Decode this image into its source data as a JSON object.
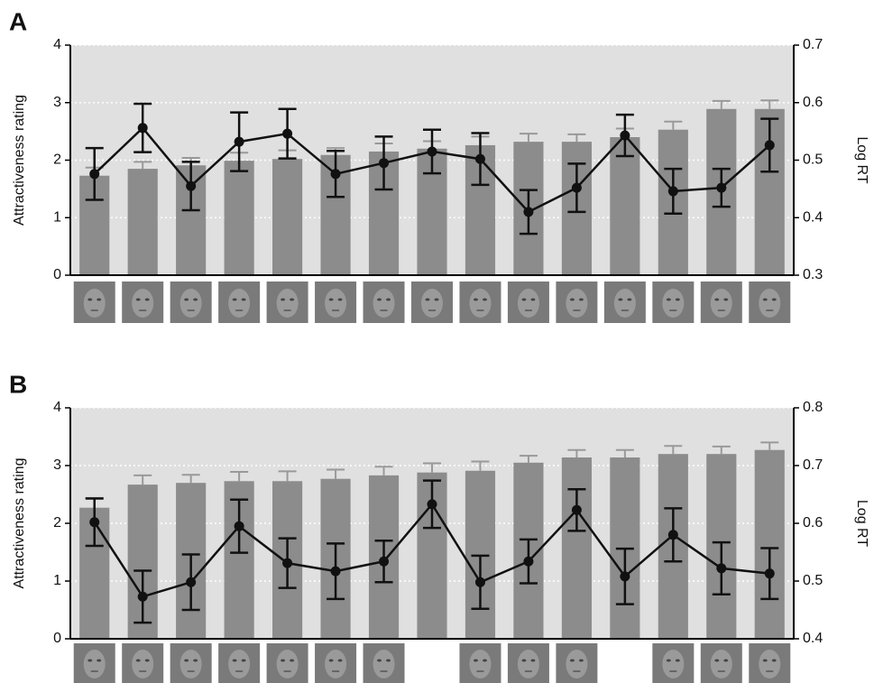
{
  "chart_data": [
    {
      "type": "combo",
      "panel": "A",
      "ylabel": "Attractiveness rating",
      "y2label": "Log RT",
      "ylim": [
        0,
        4
      ],
      "yticks": [
        0,
        1,
        2,
        3,
        4
      ],
      "y2lim": [
        0.3,
        0.7
      ],
      "y2ticks": [
        0.3,
        0.4,
        0.5,
        0.6,
        0.7
      ],
      "grid": true,
      "series": [
        {
          "kind": "bar",
          "color": "#8c8c8c",
          "values": [
            1.73,
            1.85,
            1.91,
            1.99,
            2.02,
            2.09,
            2.15,
            2.2,
            2.26,
            2.32,
            2.32,
            2.4,
            2.53,
            2.89,
            2.89
          ],
          "errors": [
            0.14,
            0.12,
            0.13,
            0.14,
            0.15,
            0.12,
            0.14,
            0.13,
            0.15,
            0.14,
            0.13,
            0.15,
            0.14,
            0.14,
            0.15
          ]
        },
        {
          "kind": "line",
          "axis": "y2",
          "color": "#111111",
          "values": [
            0.476,
            0.556,
            0.455,
            0.532,
            0.546,
            0.476,
            0.495,
            0.515,
            0.502,
            0.41,
            0.452,
            0.543,
            0.446,
            0.452,
            0.526
          ],
          "errors": [
            0.045,
            0.042,
            0.042,
            0.051,
            0.043,
            0.04,
            0.046,
            0.038,
            0.045,
            0.038,
            0.042,
            0.036,
            0.039,
            0.033,
            0.046
          ]
        }
      ]
    },
    {
      "type": "combo",
      "panel": "B",
      "ylabel": "Attractiveness rating",
      "y2label": "Log RT",
      "ylim": [
        0,
        4
      ],
      "yticks": [
        0,
        1,
        2,
        3,
        4
      ],
      "y2lim": [
        0.4,
        0.8
      ],
      "y2ticks": [
        0.4,
        0.5,
        0.6,
        0.7,
        0.8
      ],
      "grid": true,
      "series": [
        {
          "kind": "bar",
          "color": "#8c8c8c",
          "values": [
            2.27,
            2.67,
            2.7,
            2.73,
            2.73,
            2.77,
            2.83,
            2.88,
            2.91,
            3.05,
            3.14,
            3.14,
            3.2,
            3.2,
            3.27
          ],
          "errors": [
            0.17,
            0.16,
            0.14,
            0.16,
            0.17,
            0.16,
            0.15,
            0.16,
            0.16,
            0.12,
            0.13,
            0.13,
            0.14,
            0.13,
            0.13
          ]
        },
        {
          "kind": "line",
          "axis": "y2",
          "color": "#111111",
          "values": [
            0.602,
            0.473,
            0.498,
            0.595,
            0.531,
            0.517,
            0.534,
            0.633,
            0.498,
            0.534,
            0.623,
            0.508,
            0.58,
            0.522,
            0.513
          ],
          "errors": [
            0.041,
            0.045,
            0.048,
            0.046,
            0.043,
            0.048,
            0.036,
            0.041,
            0.046,
            0.038,
            0.036,
            0.048,
            0.046,
            0.045,
            0.044
          ]
        }
      ]
    }
  ]
}
